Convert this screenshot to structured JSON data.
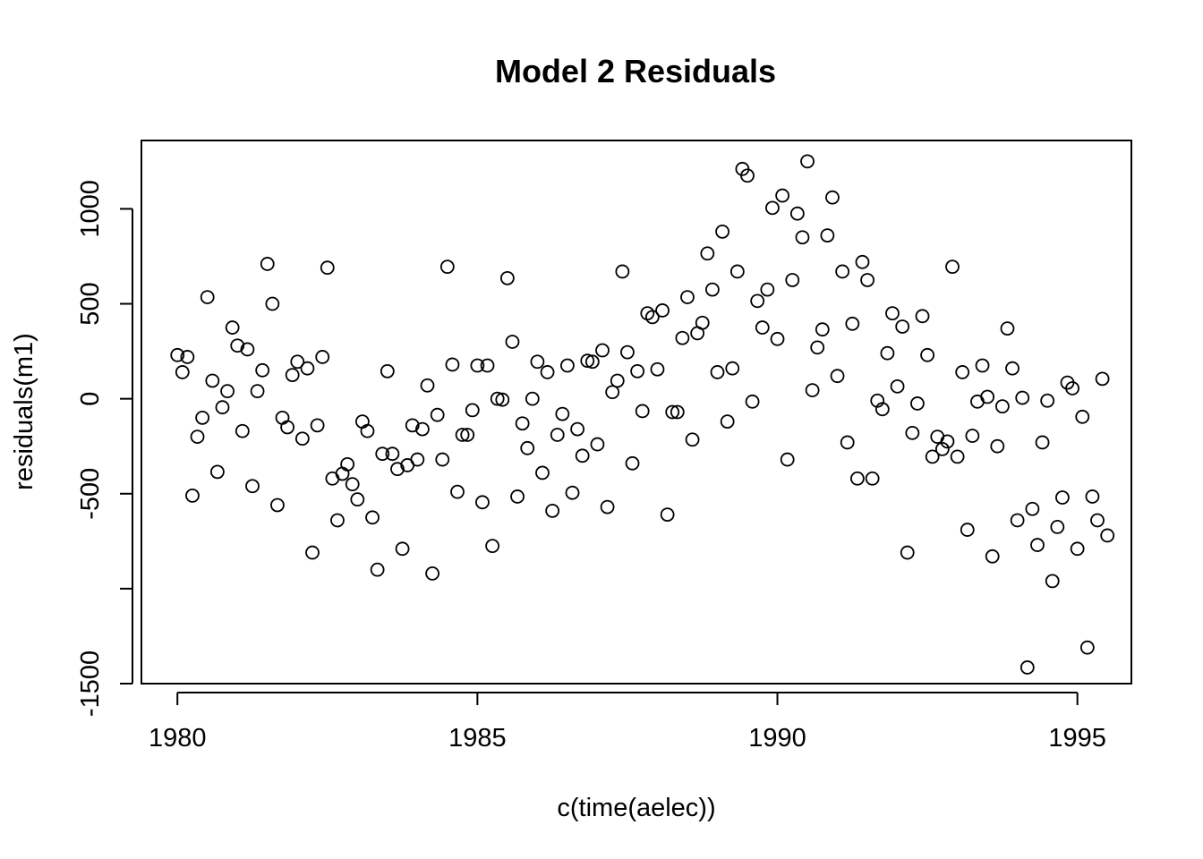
{
  "chart_data": {
    "type": "scatter",
    "title": "Model 2 Residuals",
    "xlabel": "c(time(aelec))",
    "ylabel": "residuals(m1)",
    "xlim": [
      1979.4,
      1995.9
    ],
    "ylim": [
      -1500,
      1360
    ],
    "x_ticks": [
      {
        "value": 1980,
        "label": "1980"
      },
      {
        "value": 1985,
        "label": "1985"
      },
      {
        "value": 1990,
        "label": "1990"
      },
      {
        "value": 1995,
        "label": "1995"
      }
    ],
    "y_ticks": [
      {
        "value": -1500,
        "label": "-1500"
      },
      {
        "value": -1000,
        "label": ""
      },
      {
        "value": -500,
        "label": "-500"
      },
      {
        "value": 0,
        "label": "0"
      },
      {
        "value": 500,
        "label": "500"
      },
      {
        "value": 1000,
        "label": "1000"
      }
    ],
    "grid": false,
    "marker": "open-circle",
    "x_start": 1980,
    "x_step": 0.0833333,
    "y": [
      230,
      140,
      220,
      -510,
      -200,
      -100,
      535,
      95,
      -385,
      -45,
      40,
      375,
      280,
      -170,
      260,
      -460,
      40,
      150,
      710,
      500,
      -560,
      -100,
      -150,
      125,
      195,
      -210,
      160,
      -810,
      -140,
      220,
      690,
      -420,
      -640,
      -395,
      -345,
      -450,
      -530,
      -120,
      -170,
      -625,
      -900,
      -290,
      145,
      -290,
      -370,
      -790,
      -350,
      -140,
      -320,
      -160,
      70,
      -920,
      -85,
      -320,
      695,
      180,
      -490,
      -190,
      -190,
      -60,
      175,
      -545,
      175,
      -775,
      0,
      -5,
      635,
      300,
      -515,
      -130,
      -260,
      0,
      195,
      -390,
      140,
      -590,
      -190,
      -80,
      175,
      -495,
      -160,
      -300,
      200,
      195,
      -240,
      255,
      -570,
      35,
      95,
      670,
      245,
      -340,
      145,
      -65,
      450,
      430,
      155,
      465,
      -610,
      -70,
      -70,
      320,
      535,
      -215,
      345,
      400,
      765,
      575,
      140,
      880,
      -120,
      160,
      670,
      1210,
      1175,
      -15,
      515,
      375,
      575,
      1005,
      315,
      1070,
      -320,
      625,
      975,
      850,
      1250,
      45,
      270,
      365,
      860,
      1060,
      120,
      670,
      -230,
      395,
      -420,
      720,
      625,
      -420,
      -10,
      -55,
      240,
      450,
      65,
      380,
      -810,
      -180,
      -25,
      435,
      230,
      -305,
      -200,
      -265,
      -225,
      695,
      -305,
      140,
      -690,
      -195,
      -15,
      175,
      10,
      -830,
      -250,
      -40,
      370,
      160,
      -640,
      5,
      -1415,
      -580,
      -770,
      -230,
      -10,
      -960,
      -675,
      -520,
      85,
      55,
      -790,
      -95,
      -1310,
      -515,
      -640,
      105,
      -720
    ]
  }
}
